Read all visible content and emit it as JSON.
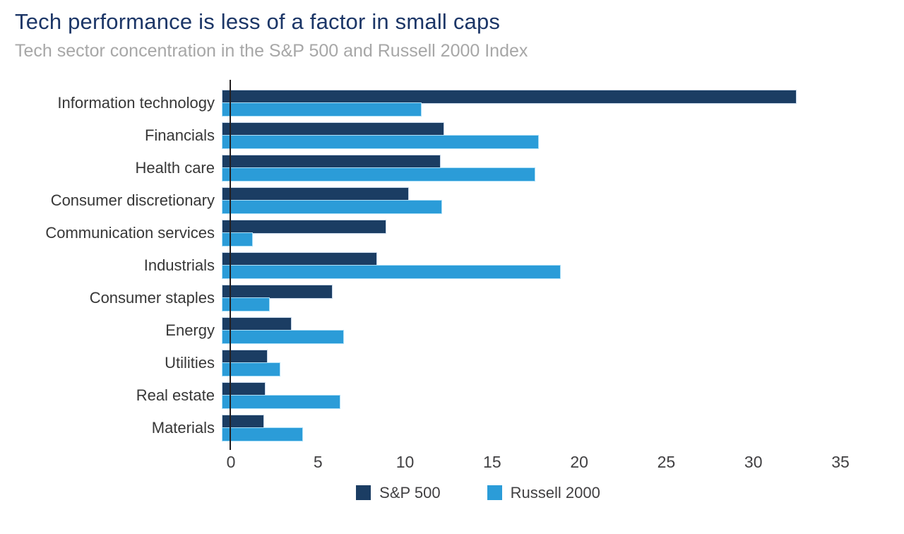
{
  "header": {
    "title": "Tech performance is less of a factor in small caps",
    "subtitle": "Tech sector concentration in the S&P 500 and Russell 2000 Index"
  },
  "chart_data": {
    "type": "bar",
    "orientation": "horizontal",
    "title": "Tech performance is less of a factor in small caps",
    "subtitle": "Tech sector concentration in the S&P 500 and Russell 2000 Index",
    "categories": [
      "Information technology",
      "Financials",
      "Health care",
      "Consumer discretionary",
      "Communication services",
      "Industrials",
      "Consumer staples",
      "Energy",
      "Utilities",
      "Real estate",
      "Materials"
    ],
    "series": [
      {
        "name": "S&P 500",
        "color": "#1b3d63",
        "values": [
          30.9,
          11.9,
          11.7,
          10.0,
          8.8,
          8.3,
          5.9,
          3.7,
          2.4,
          2.3,
          2.2
        ]
      },
      {
        "name": "Russell 2000",
        "color": "#2b9cd8",
        "values": [
          10.7,
          17.0,
          16.8,
          11.8,
          1.6,
          18.2,
          2.5,
          6.5,
          3.1,
          6.3,
          4.3
        ]
      }
    ],
    "xlabel": "",
    "ylabel": "",
    "xlim": [
      0,
      35
    ],
    "x_ticks": [
      0,
      5,
      10,
      15,
      20,
      25,
      30,
      35
    ],
    "grid": false,
    "legend_position": "bottom"
  },
  "colors": {
    "title": "#1c3667",
    "subtitle": "#a7a7a7",
    "category_label": "#373737",
    "tick_label": "#414042",
    "axis_line": "#231f20",
    "sp500": "#1b3d63",
    "russell2000": "#2b9cd8"
  }
}
